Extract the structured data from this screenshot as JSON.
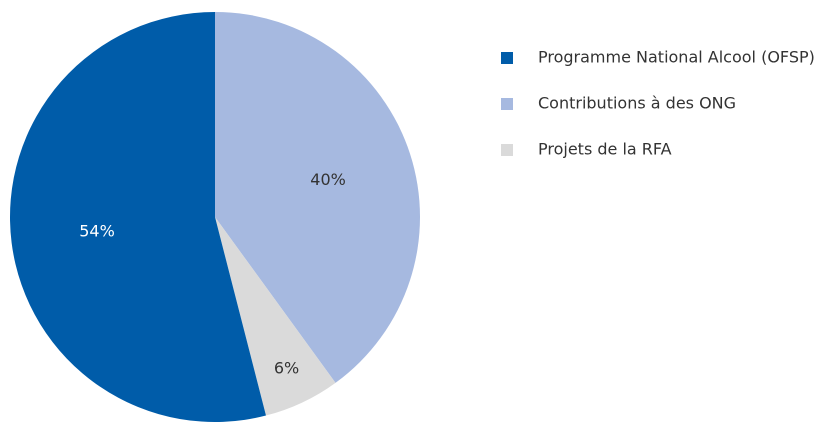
{
  "chart_data": {
    "type": "pie",
    "categories": [
      "Contributions à des ONG",
      "Projets de la RFA",
      "Programme National Alcool (OFSP)"
    ],
    "values": [
      40,
      6,
      54
    ],
    "value_labels": [
      "40%",
      "6%",
      "54%"
    ],
    "colors": [
      "#a6b9e0",
      "#dadada",
      "#005ca9"
    ],
    "label_colors": [
      "#333333",
      "#333333",
      "#ffffff"
    ],
    "legend_order": [
      2,
      0,
      1
    ]
  }
}
